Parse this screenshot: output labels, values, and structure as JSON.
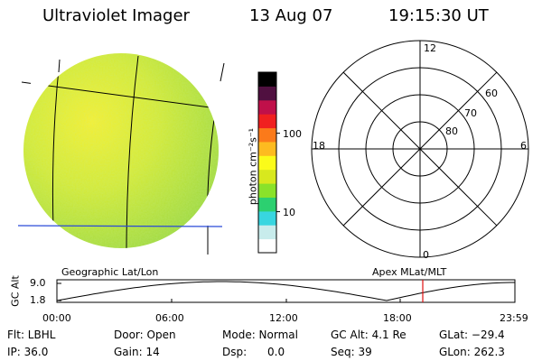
{
  "header": {
    "instrument": "Ultraviolet Imager",
    "date": "13 Aug 07",
    "time": "19:15:30 UT"
  },
  "colorbar": {
    "unit_label": "photon cm⁻²s⁻¹",
    "ticks": [
      {
        "value": 10,
        "label": "10"
      },
      {
        "value": 100,
        "label": "100"
      }
    ],
    "scale": "log",
    "range": [
      3,
      600
    ],
    "colors": [
      "#ffffff",
      "#c8ecec",
      "#38d6e0",
      "#2cd070",
      "#8ae22a",
      "#d8e81e",
      "#fbfb1a",
      "#fdbb20",
      "#fb7a1a",
      "#f02020",
      "#c0104a",
      "#501040",
      "#000000"
    ]
  },
  "polar": {
    "mlt_labels": [
      {
        "text": "12",
        "pos": "top"
      },
      {
        "text": "18",
        "pos": "left"
      },
      {
        "text": "6",
        "pos": "right"
      },
      {
        "text": "0",
        "pos": "bottom"
      }
    ],
    "mlat_labels": [
      "60",
      "70",
      "80"
    ]
  },
  "image_label": "Geographic Lat/Lon",
  "polar_label": "Apex MLat/MLT",
  "altitude_plot": {
    "ylabel": "GC Alt",
    "y_ticks": [
      "9.0",
      "1.8"
    ],
    "x_ticks": [
      "00:00",
      "06:00",
      "12:00",
      "18:00",
      "23:59"
    ],
    "current_time_marker": "19:15"
  },
  "info": {
    "flt": "Flt: LBHL",
    "ip": "IP: 36.0",
    "door": "Door: Open",
    "gain": "Gain: 14",
    "mode": "Mode: Normal",
    "dsp": "Dsp:      0.0",
    "gcalt": "GC Alt: 4.1 Re",
    "seq": "Seq: 39",
    "glat": "GLat: −29.4",
    "glon": "GLon: 262.3"
  },
  "colors": {
    "disk_green": "#a6dc3c",
    "disk_yellow": "#f2ee2a",
    "marker_red": "#e01010",
    "equator_blue": "#2a4ad8"
  }
}
